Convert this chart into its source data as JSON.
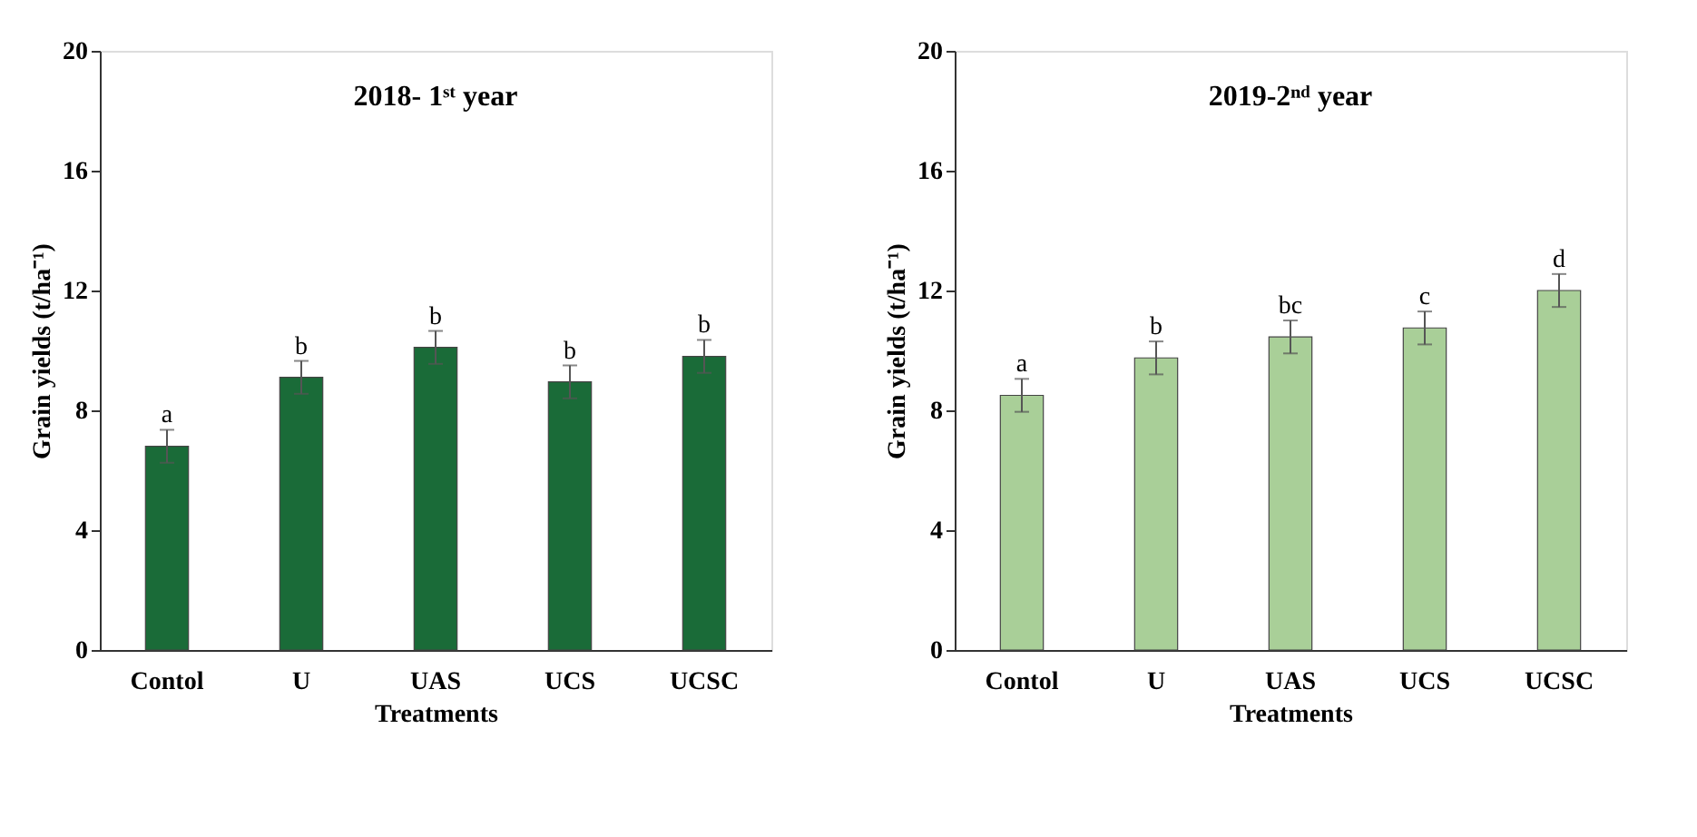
{
  "chart_data": [
    {
      "type": "bar",
      "title": "2018- 1ˢᵗ  year",
      "xlabel": "Treatments",
      "ylabel": "Grain yields (t/ha⁻¹)",
      "categories": [
        "Contol",
        "U",
        "UAS",
        "UCS",
        "UCSC"
      ],
      "values": [
        6.8,
        9.1,
        10.1,
        8.95,
        9.8
      ],
      "color": "#1a6b38",
      "errors": [
        0.55,
        0.55,
        0.55,
        0.55,
        0.55
      ],
      "ylim": [
        0,
        20
      ],
      "yticks": [
        0,
        4,
        8,
        12,
        16,
        20
      ],
      "grid": false,
      "annotations": [
        {
          "text": "a",
          "x": "Contol",
          "y": 7.35
        },
        {
          "text": "b",
          "x": "U",
          "y": 9.65
        },
        {
          "text": "b",
          "x": "UAS",
          "y": 10.65
        },
        {
          "text": "b",
          "x": "UCS",
          "y": 9.5
        },
        {
          "text": "b",
          "x": "UCSC",
          "y": 10.35
        }
      ]
    },
    {
      "type": "bar",
      "title": "2019-2ⁿᵈ year",
      "xlabel": "Treatments",
      "ylabel": "Grain yields (t/ha⁻¹)",
      "categories": [
        "Contol",
        "U",
        "UAS",
        "UCS",
        "UCSC"
      ],
      "values": [
        8.5,
        9.75,
        10.45,
        10.75,
        12.0
      ],
      "color": "#a9cf98",
      "errors": [
        0.55,
        0.55,
        0.55,
        0.55,
        0.55
      ],
      "ylim": [
        0,
        20
      ],
      "yticks": [
        0,
        4,
        8,
        12,
        16,
        20
      ],
      "grid": false,
      "annotations": [
        {
          "text": "a",
          "x": "Contol",
          "y": 9.05
        },
        {
          "text": "b",
          "x": "U",
          "y": 10.3
        },
        {
          "text": "bc",
          "x": "UAS",
          "y": 11.0
        },
        {
          "text": "c",
          "x": "UCS",
          "y": 11.3
        },
        {
          "text": "d",
          "x": "UCSC",
          "y": 12.55
        }
      ]
    }
  ]
}
